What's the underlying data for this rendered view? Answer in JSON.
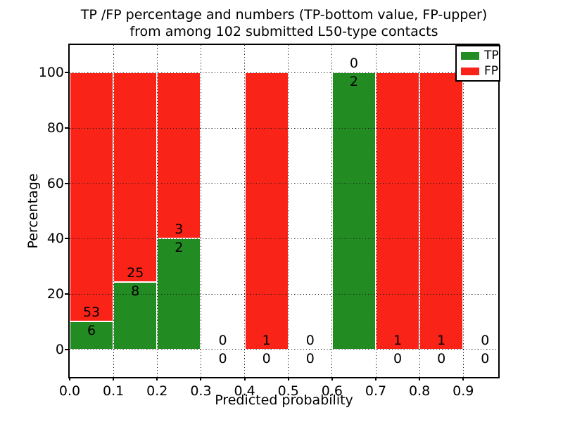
{
  "chart_data": {
    "type": "bar",
    "stacked": true,
    "title_line1": "TP /FP percentage and numbers (TP-bottom value, FP-upper)",
    "title_line2": "from among 102 submitted L50-type contacts",
    "xlabel": "Predicted probability",
    "ylabel": "Percentage",
    "xlim": [
      0.0,
      0.98
    ],
    "ylim": [
      -10,
      110
    ],
    "bin_width": 0.1,
    "xticks": [
      0.0,
      0.1,
      0.2,
      0.3,
      0.4,
      0.5,
      0.6,
      0.7,
      0.8,
      0.9
    ],
    "xtick_labels": [
      "0.0",
      "0.1",
      "0.2",
      "0.3",
      "0.4",
      "0.5",
      "0.6",
      "0.7",
      "0.8",
      "0.9"
    ],
    "yticks": [
      0,
      20,
      40,
      60,
      80,
      100
    ],
    "ytick_labels": [
      "0",
      "20",
      "40",
      "60",
      "80",
      "100"
    ],
    "grid": "dotted, drawn above bars",
    "bins": [
      {
        "x0": 0.0,
        "tp": 6,
        "fp": 53
      },
      {
        "x0": 0.1,
        "tp": 8,
        "fp": 25
      },
      {
        "x0": 0.2,
        "tp": 2,
        "fp": 3
      },
      {
        "x0": 0.3,
        "tp": 0,
        "fp": 0
      },
      {
        "x0": 0.4,
        "tp": 0,
        "fp": 1
      },
      {
        "x0": 0.5,
        "tp": 0,
        "fp": 0
      },
      {
        "x0": 0.6,
        "tp": 2,
        "fp": 0
      },
      {
        "x0": 0.7,
        "tp": 0,
        "fp": 1
      },
      {
        "x0": 0.8,
        "tp": 0,
        "fp": 1
      },
      {
        "x0": 0.9,
        "tp": 0,
        "fp": 0
      }
    ],
    "colors": {
      "tp": "#228b22",
      "fp": "#fa2318",
      "axis": "#000000",
      "grid": "#1a1a1a"
    },
    "legend": [
      {
        "label": "TP",
        "color": "#228b22"
      },
      {
        "label": "FP",
        "color": "#fa2318"
      }
    ],
    "legend_position": "upper right"
  }
}
